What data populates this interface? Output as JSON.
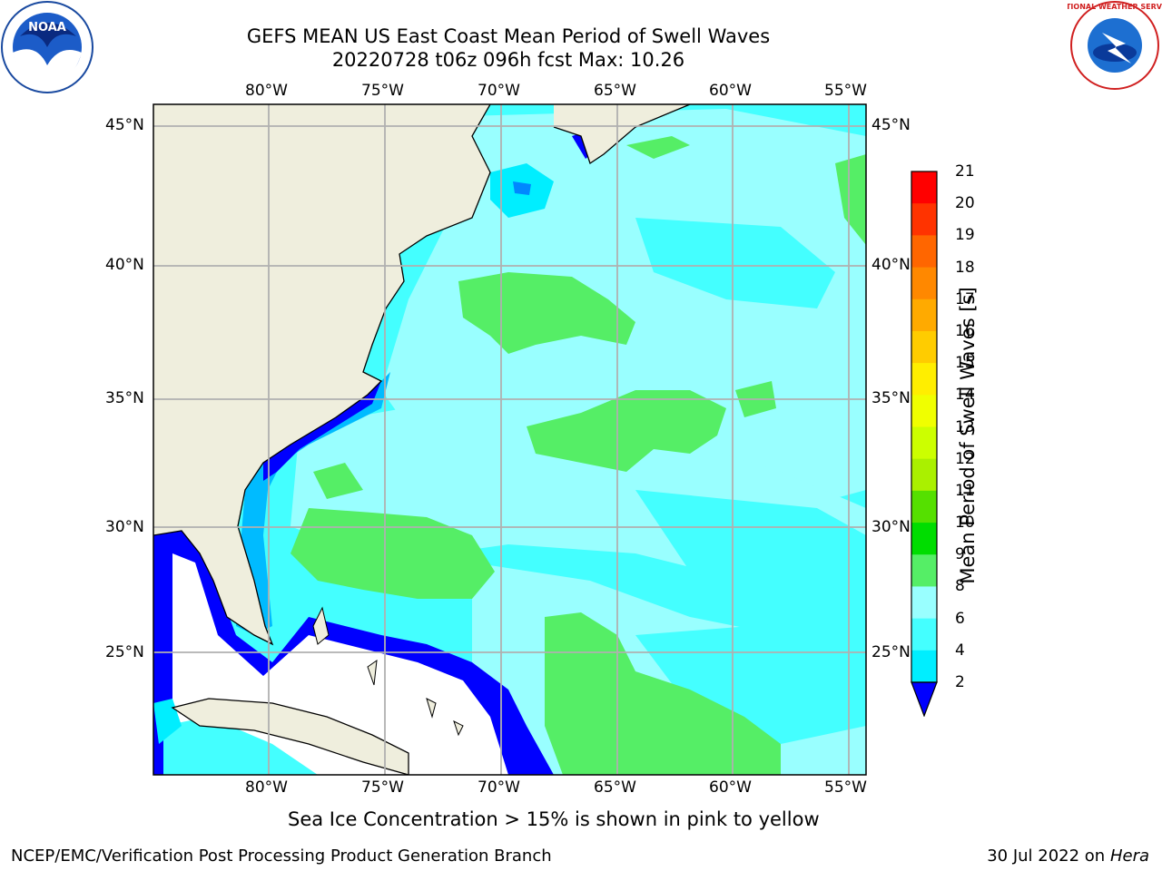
{
  "header": {
    "title_line1": "GEFS MEAN US East Coast Mean Period of Swell Waves",
    "title_line2": "20220728 t06z 096h fcst   Max: 10.26"
  },
  "logos": {
    "left": "NOAA",
    "right": "NATIONAL WEATHER SERVICE"
  },
  "map": {
    "lon_labels": [
      "80°W",
      "75°W",
      "70°W",
      "65°W",
      "60°W",
      "55°W"
    ],
    "lat_labels": [
      "45°N",
      "40°N",
      "35°N",
      "30°N",
      "25°N"
    ],
    "colors": {
      "land": "#efeedd",
      "grid": "#b0b0b0",
      "no_data": "#ffffff"
    }
  },
  "colorbar": {
    "label": "Mean Period of Swell Waves [s]",
    "ticks": [
      "21",
      "20",
      "19",
      "18",
      "17",
      "16",
      "15",
      "14",
      "13",
      "12",
      "11",
      "10",
      "9",
      "8",
      "6",
      "4",
      "2"
    ],
    "colors_top_to_bottom": [
      "#ff0000",
      "#ff3300",
      "#ff6600",
      "#ff8800",
      "#ffaa00",
      "#ffcc00",
      "#ffee00",
      "#f0ff00",
      "#ccff00",
      "#aaf000",
      "#55e000",
      "#00dd00",
      "#55ee66",
      "#99ffff",
      "#44ffff",
      "#00eeff",
      "#0088ff",
      "#0000ff"
    ]
  },
  "caption": "Sea Ice Concentration > 15% is shown in pink to yellow",
  "footer": {
    "left": "NCEP/EMC/Verification Post Processing Product Generation Branch",
    "right_date": "30 Jul 2022 on ",
    "right_machine": "Hera"
  }
}
